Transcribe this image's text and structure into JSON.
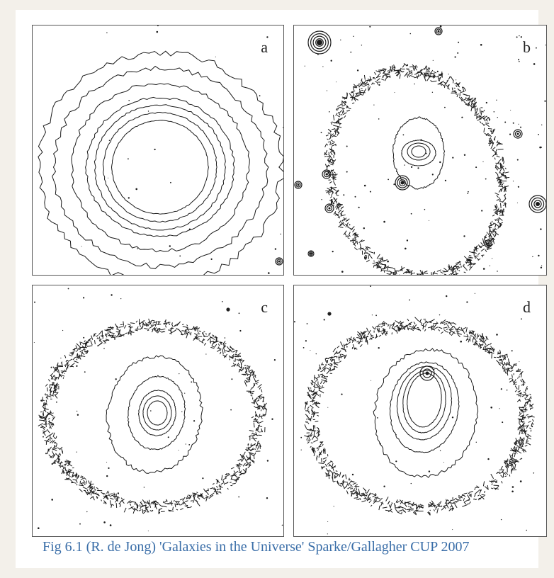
{
  "figure": {
    "panels": [
      {
        "label": "a"
      },
      {
        "label": "b"
      },
      {
        "label": "c"
      },
      {
        "label": "d"
      }
    ],
    "caption": "Fig 6.1 (R. de Jong) 'Galaxies in the Universe' Sparke/Gallagher CUP 2007",
    "colors": {
      "caption": "#3a6ea8",
      "contour": "#1a1a1a",
      "background": "#f3f0ea"
    }
  }
}
